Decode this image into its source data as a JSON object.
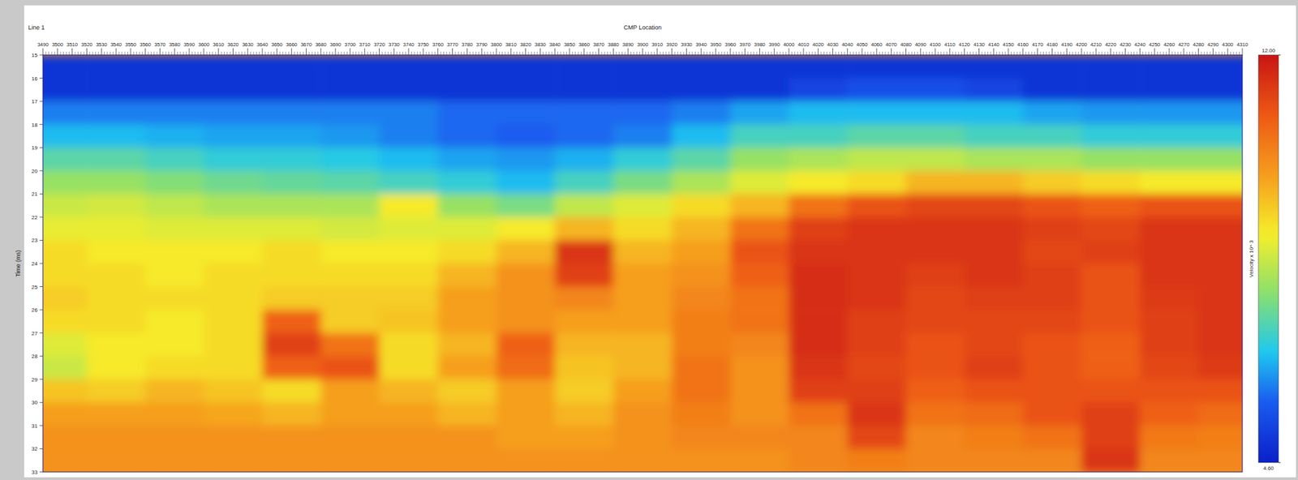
{
  "chart_data": {
    "type": "heatmap",
    "title": "Line 1",
    "x_label": "CMP Location",
    "y_label": "Time (ms)",
    "x": [
      3500,
      3540,
      3580,
      3620,
      3660,
      3700,
      3740,
      3780,
      3820,
      3860,
      3900,
      3940,
      3980,
      4020,
      4060,
      4100,
      4140,
      4180,
      4220,
      4260,
      4300
    ],
    "y": [
      15.5,
      16.5,
      17.5,
      18.5,
      19.5,
      20.5,
      21.5,
      22.5,
      23.5,
      24.5,
      25.5,
      26.5,
      27.5,
      28.5,
      29.5,
      30.5,
      31.5,
      32.5
    ],
    "values": [
      [
        5,
        5,
        5,
        5,
        5,
        5,
        5,
        5,
        5,
        5,
        5,
        5,
        5,
        5,
        5,
        5,
        5,
        5,
        5,
        5,
        5
      ],
      [
        5,
        5,
        5,
        5,
        5,
        5,
        5,
        5,
        5,
        5,
        5,
        5,
        5,
        5.3,
        5.5,
        5.5,
        5.3,
        5,
        5,
        5,
        5
      ],
      [
        6,
        6,
        6,
        6,
        6,
        6,
        6,
        5.8,
        5.8,
        5.8,
        5.8,
        6,
        6.3,
        6.5,
        6.5,
        6.5,
        6.5,
        6.3,
        6.2,
        6.2,
        6.2
      ],
      [
        6.5,
        6.5,
        6.4,
        6.3,
        6.3,
        6.2,
        6,
        5.8,
        5.7,
        5.8,
        6,
        6.5,
        7,
        7,
        7.2,
        7.2,
        7,
        7,
        6.8,
        6.8,
        6.8
      ],
      [
        7.2,
        7.2,
        7,
        6.8,
        6.8,
        6.7,
        6.5,
        6.3,
        6.2,
        6.4,
        6.8,
        7.2,
        7.8,
        8,
        8.2,
        8.2,
        8,
        8,
        7.8,
        7.8,
        7.8
      ],
      [
        7.8,
        7.8,
        7.6,
        7.4,
        7.3,
        7.2,
        7,
        6.8,
        6.5,
        7,
        7.5,
        8,
        8.5,
        8.8,
        9,
        9.5,
        9.5,
        9.2,
        9,
        8.8,
        8.8
      ],
      [
        8.3,
        8.4,
        8.2,
        8,
        8,
        8,
        8.8,
        7.8,
        7.5,
        8.2,
        8.5,
        9,
        9.5,
        10.5,
        11,
        11.2,
        11.2,
        11,
        10.8,
        11,
        11
      ],
      [
        8.6,
        8.6,
        8.5,
        8.5,
        8.5,
        8.4,
        8.5,
        8.5,
        8.8,
        9.5,
        9,
        9.5,
        10.5,
        11.3,
        11.5,
        11.5,
        11.5,
        11.3,
        11.2,
        11.5,
        11.5
      ],
      [
        9,
        8.8,
        8.8,
        8.8,
        9,
        8.8,
        8.8,
        9,
        9.5,
        11.5,
        9.5,
        9.8,
        11,
        11.5,
        11.5,
        11.5,
        11.5,
        11.2,
        11.3,
        11.5,
        11.5
      ],
      [
        9,
        9,
        8.8,
        9,
        9,
        9,
        9,
        9.5,
        10,
        11.3,
        9.8,
        10,
        10.8,
        11.6,
        11.5,
        11.3,
        11.5,
        11.3,
        11,
        11.5,
        11.5
      ],
      [
        9.2,
        9,
        9,
        9,
        9.2,
        9.2,
        9.2,
        9.8,
        10,
        10.2,
        9.8,
        10.2,
        10.5,
        11.6,
        11.5,
        11.2,
        11.3,
        11.3,
        11,
        11.4,
        11.5
      ],
      [
        9,
        9,
        8.8,
        9,
        10.8,
        9.2,
        9.3,
        9.8,
        10,
        9.8,
        9.8,
        10.3,
        10.5,
        11.6,
        11.3,
        11.2,
        11.2,
        11.2,
        11,
        11.3,
        11.5
      ],
      [
        8.5,
        8.8,
        8.8,
        9,
        11.3,
        10.5,
        9,
        9.5,
        10.8,
        9.5,
        9.5,
        10.3,
        10.2,
        11.6,
        11.3,
        11,
        11.2,
        11,
        10.8,
        11.3,
        11.5
      ],
      [
        8.3,
        8.8,
        9,
        9,
        10.8,
        11,
        9,
        9.8,
        10.6,
        9.3,
        9.5,
        10.5,
        10,
        11.5,
        11.2,
        11,
        11.3,
        11,
        10.8,
        11.2,
        11.4
      ],
      [
        9.3,
        9.2,
        9.5,
        9.3,
        9,
        9.8,
        9.5,
        9.2,
        9.8,
        9.2,
        9.8,
        10.5,
        10,
        11.3,
        11.3,
        10.8,
        11,
        11,
        11,
        11,
        11
      ],
      [
        9.8,
        9.8,
        9.8,
        9.7,
        9.5,
        9.8,
        9.8,
        9.5,
        9.8,
        9.5,
        10,
        10.3,
        10,
        10.5,
        11.5,
        10.5,
        10.6,
        11,
        11.3,
        10.8,
        10.6
      ],
      [
        10,
        10,
        10,
        10,
        10,
        10,
        10,
        10,
        9.8,
        9.8,
        10,
        10.2,
        10.2,
        10.2,
        11.2,
        10.2,
        10.3,
        10.5,
        11.3,
        10.4,
        10.3
      ],
      [
        10,
        10,
        10,
        10,
        10,
        10,
        10,
        10,
        10,
        10,
        10,
        10,
        10,
        10.2,
        10.3,
        10.2,
        10.2,
        10.2,
        11.5,
        10.2,
        10.2
      ]
    ],
    "xlim": [
      3490,
      4310
    ],
    "ylim": [
      15,
      33
    ],
    "xticks": [
      3490,
      3500,
      3510,
      3520,
      3530,
      3540,
      3550,
      3560,
      3570,
      3580,
      3590,
      3600,
      3610,
      3620,
      3630,
      3640,
      3650,
      3660,
      3670,
      3680,
      3690,
      3700,
      3710,
      3720,
      3730,
      3740,
      3750,
      3760,
      3770,
      3780,
      3790,
      3800,
      3810,
      3820,
      3830,
      3840,
      3850,
      3860,
      3870,
      3880,
      3890,
      3900,
      3910,
      3920,
      3930,
      3940,
      3950,
      3960,
      3970,
      3980,
      3990,
      4000,
      4010,
      4020,
      4030,
      4040,
      4050,
      4060,
      4070,
      4080,
      4090,
      4100,
      4110,
      4120,
      4130,
      4140,
      4150,
      4160,
      4170,
      4180,
      4190,
      4200,
      4210,
      4220,
      4230,
      4240,
      4250,
      4260,
      4270,
      4280,
      4290,
      4300,
      4310
    ],
    "yticks": [
      15,
      16,
      17,
      18,
      19,
      20,
      21,
      22,
      23,
      24,
      25,
      26,
      27,
      28,
      29,
      30,
      31,
      32,
      33
    ],
    "colorbar_label": "Velocity x 10^ 3",
    "colorbar_range": [
      4.6,
      12
    ],
    "colorbar_ticks": [
      {
        "value": 12,
        "label": "12.00"
      },
      {
        "value": 4.6,
        "label": "4.60"
      }
    ]
  }
}
